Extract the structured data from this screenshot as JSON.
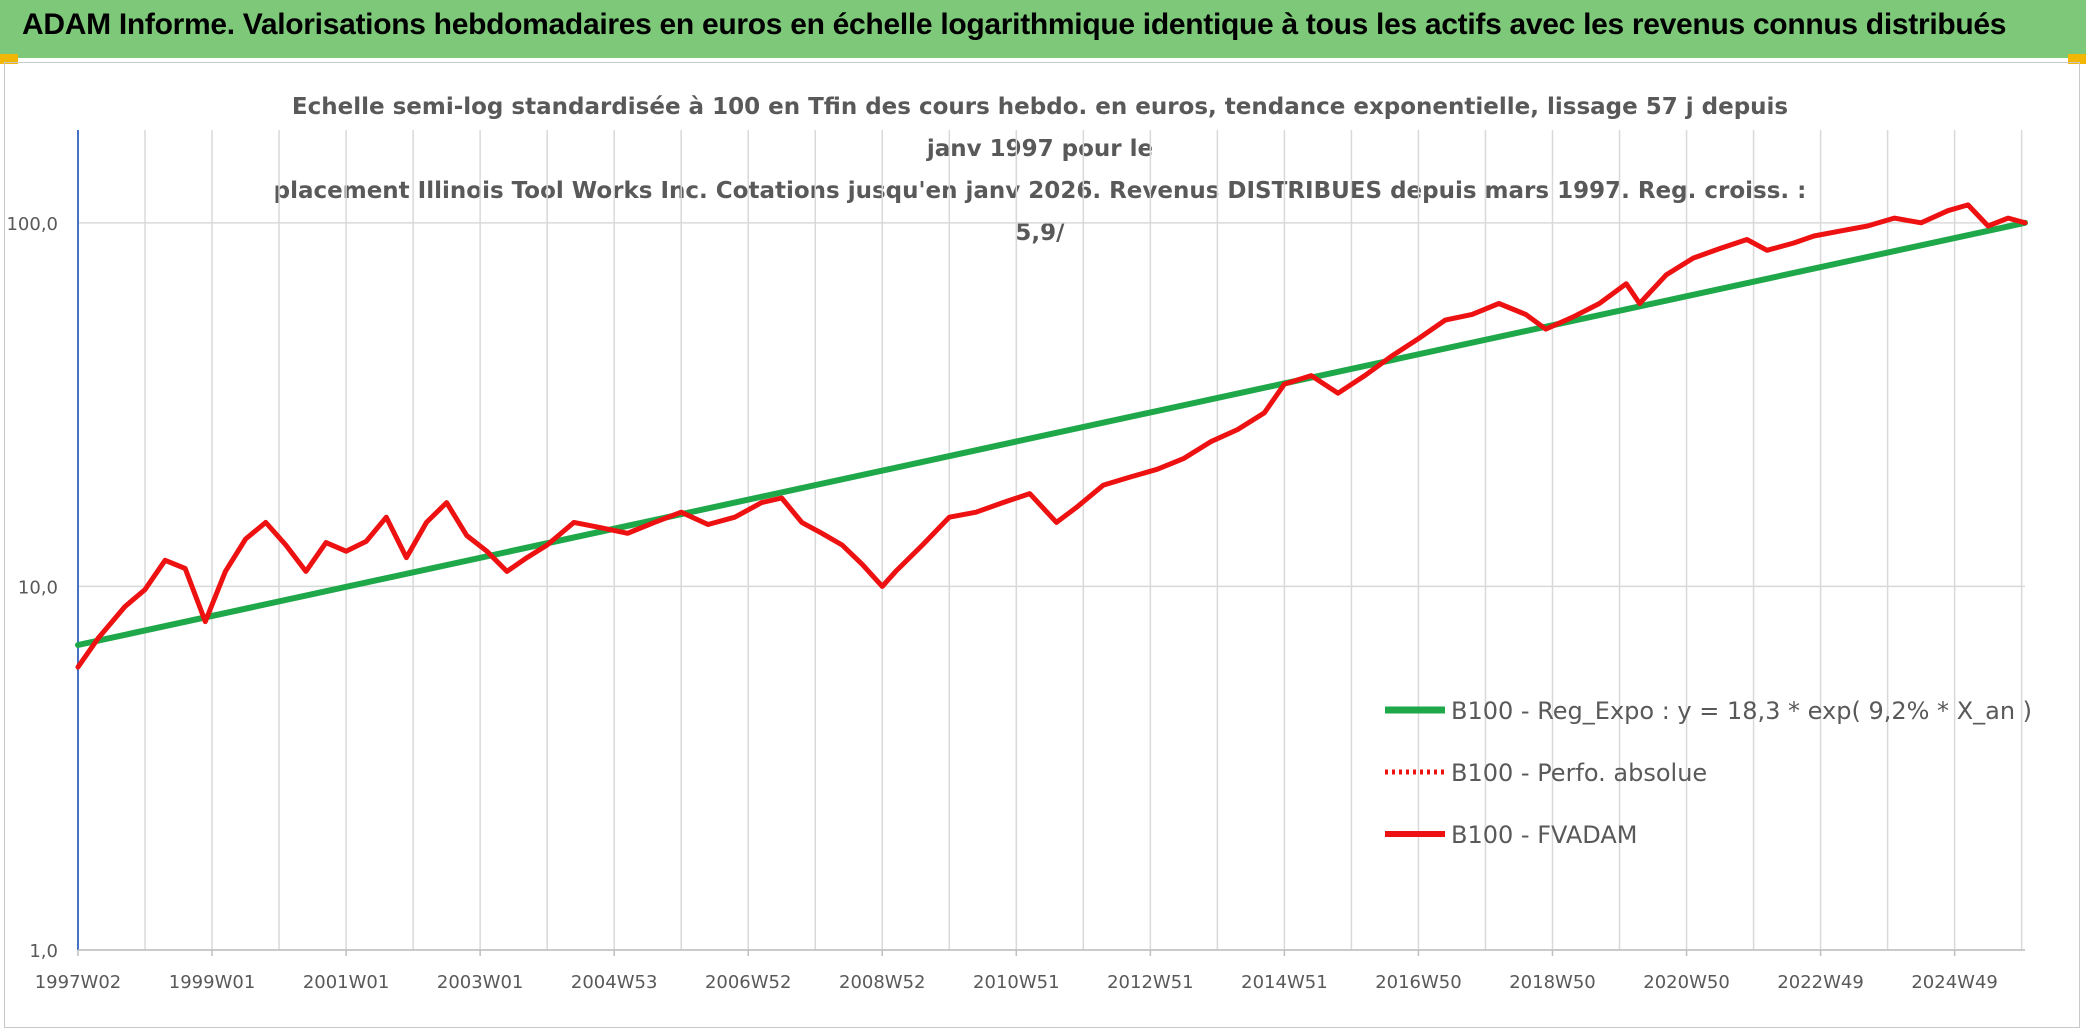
{
  "header": {
    "title": "ADAM Informe. Valorisations hebdomadaires en euros en échelle logarithmique identique à tous les actifs avec les revenus connus distribués"
  },
  "colors": {
    "banner": "#7ec87a",
    "trend": "#1fa84a",
    "series": "#ee1111",
    "grid": "#d9d9d9",
    "axis": "#4472c4",
    "text": "#595959"
  },
  "chart_data": {
    "type": "line",
    "title_lines": [
      "Echelle semi-log standardisée à 100 en Tfin des cours hebdo. en euros, tendance exponentielle, lissage 57 j depuis janv 1997 pour le",
      "placement Illinois Tool Works Inc. Cotations jusqu'en janv 2026. Revenus DISTRIBUES depuis mars 1997. Reg. croiss. : 5,9/"
    ],
    "y_scale": "log",
    "ylim": [
      1,
      180
    ],
    "y_ticks": [
      1,
      10,
      100
    ],
    "y_tick_labels": [
      "1,0",
      "10,0",
      "100,0"
    ],
    "xlim": [
      1997.0,
      2026.05
    ],
    "x_ticks": [
      1997.0,
      1999.0,
      2001.0,
      2003.0,
      2005.0,
      2007.0,
      2009.0,
      2011.0,
      2013.0,
      2015.0,
      2017.0,
      2019.0,
      2021.0,
      2023.0,
      2025.0
    ],
    "x_tick_labels": [
      "1997W02",
      "1999W01",
      "2001W01",
      "2003W01",
      "2004W53",
      "2006W52",
      "2008W52",
      "2010W51",
      "2012W51",
      "2014W51",
      "2016W50",
      "2018W50",
      "2020W50",
      "2022W49",
      "2024W49"
    ],
    "legend": {
      "position": "center-right",
      "entries": [
        {
          "label": "B100 - Reg_Expo : y = 18,3 * exp( 9,2% *  X_an )",
          "style": "solid-green"
        },
        {
          "label": "B100 - Perfo. absolue",
          "style": "dotted-red"
        },
        {
          "label": "B100 - FVADAM",
          "style": "solid-red"
        }
      ]
    },
    "series": [
      {
        "name": "B100 - Reg_Expo : y = 18,3 * exp( 9,2% *  X_an )",
        "x": [
          1997.0,
          2026.05
        ],
        "y": [
          6.9,
          100
        ]
      },
      {
        "name": "B100 - Perfo. absolue",
        "x": [],
        "y": []
      },
      {
        "name": "B100 - FVADAM",
        "x": [
          1997.0,
          1997.3,
          1997.7,
          1998.0,
          1998.3,
          1998.6,
          1998.9,
          1999.2,
          1999.5,
          1999.8,
          2000.1,
          2000.4,
          2000.7,
          2001.0,
          2001.3,
          2001.6,
          2001.9,
          2002.2,
          2002.5,
          2002.8,
          2003.1,
          2003.4,
          2003.7,
          2004.0,
          2004.4,
          2004.8,
          2005.2,
          2005.6,
          2006.0,
          2006.4,
          2006.8,
          2007.2,
          2007.5,
          2007.8,
          2008.1,
          2008.4,
          2008.7,
          2009.0,
          2009.2,
          2009.6,
          2010.0,
          2010.4,
          2010.8,
          2011.2,
          2011.6,
          2011.9,
          2012.3,
          2012.7,
          2013.1,
          2013.5,
          2013.9,
          2014.3,
          2014.7,
          2015.0,
          2015.4,
          2015.8,
          2016.2,
          2016.6,
          2017.0,
          2017.4,
          2017.8,
          2018.2,
          2018.6,
          2018.9,
          2019.3,
          2019.7,
          2020.1,
          2020.3,
          2020.7,
          2021.1,
          2021.5,
          2021.9,
          2022.2,
          2022.6,
          2022.9,
          2023.3,
          2023.7,
          2024.1,
          2024.5,
          2024.9,
          2025.2,
          2025.5,
          2025.8,
          2026.05
        ],
        "y": [
          6.0,
          7.2,
          8.8,
          9.8,
          11.8,
          11.2,
          8.0,
          11.0,
          13.5,
          15.0,
          13.0,
          11.0,
          13.2,
          12.5,
          13.3,
          15.5,
          12.0,
          15.0,
          17.0,
          13.8,
          12.5,
          11.0,
          12.0,
          13.0,
          15.0,
          14.5,
          14.0,
          15.0,
          16.0,
          14.8,
          15.5,
          17.0,
          17.5,
          15.0,
          14.0,
          13.0,
          11.5,
          10.0,
          11.0,
          13.0,
          15.5,
          16.0,
          17.0,
          18.0,
          15.0,
          16.5,
          19.0,
          20.0,
          21.0,
          22.5,
          25.0,
          27.0,
          30.0,
          36.0,
          38.0,
          34.0,
          38.0,
          43.0,
          48.0,
          54.0,
          56.0,
          60.0,
          56.0,
          51.0,
          55.0,
          60.0,
          68.0,
          60.0,
          72.0,
          80.0,
          85.0,
          90.0,
          84.0,
          88.0,
          92.0,
          95.0,
          98.0,
          103.0,
          100.0,
          108.0,
          112.0,
          98.0,
          103.0,
          100.0
        ]
      }
    ]
  }
}
